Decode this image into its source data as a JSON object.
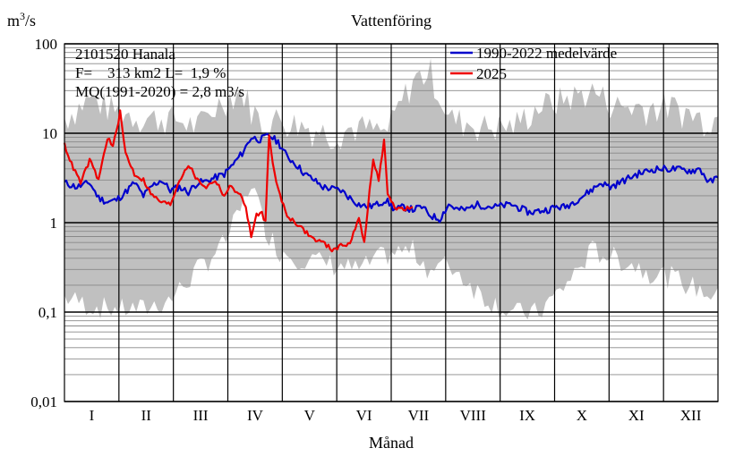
{
  "chart_data": {
    "type": "line",
    "title": "Vattenföring",
    "ylabel_base": "m",
    "ylabel_sup": "3",
    "ylabel_suffix": "/s",
    "xlabel": "Månad",
    "yscale": "log",
    "ylim": [
      0.01,
      100
    ],
    "ytick_labels": [
      "100",
      "10",
      "1",
      "0,1",
      "0,01"
    ],
    "ytick_values": [
      100,
      10,
      1,
      0.1,
      0.01
    ],
    "months": [
      "I",
      "II",
      "III",
      "IV",
      "V",
      "VI",
      "VII",
      "VIII",
      "IX",
      "X",
      "XI",
      "XII"
    ],
    "info_lines": [
      "2101520 Hanala",
      "F=    313 km2 L=  1,9 %",
      "MQ(1991-2020) = 2,8 m3/s"
    ],
    "legend": [
      {
        "name": "1990-2022 medelvärde",
        "color": "#0000cc"
      },
      {
        "name": "2025",
        "color": "#ee0000"
      }
    ],
    "band": {
      "name": "min-max range",
      "color": "#c0c0c0",
      "x_day": [
        1,
        15,
        30,
        45,
        60,
        75,
        90,
        100,
        105,
        112,
        120,
        135,
        150,
        165,
        180,
        195,
        205,
        215,
        235,
        250,
        265,
        280,
        295,
        310,
        325,
        340,
        355,
        365
      ],
      "upper": [
        15,
        25,
        18,
        15,
        15,
        12,
        25,
        30,
        20,
        12,
        15,
        12,
        10,
        12,
        10,
        40,
        50,
        15,
        12,
        12,
        20,
        25,
        30,
        20,
        20,
        20,
        15,
        15
      ],
      "lower": [
        0.15,
        0.12,
        0.11,
        0.11,
        0.14,
        0.3,
        0.6,
        1.5,
        3,
        1.0,
        0.5,
        0.4,
        0.35,
        0.3,
        0.45,
        0.5,
        0.3,
        0.35,
        0.15,
        0.1,
        0.1,
        0.2,
        0.5,
        0.4,
        0.3,
        0.25,
        0.18,
        0.15
      ]
    },
    "series": [
      {
        "name": "1990-2022 medelvärde",
        "color": "#0000cc",
        "x_day": [
          1,
          8,
          15,
          20,
          25,
          30,
          35,
          40,
          45,
          50,
          55,
          60,
          65,
          70,
          75,
          80,
          85,
          90,
          95,
          100,
          105,
          110,
          115,
          120,
          125,
          130,
          135,
          140,
          145,
          150,
          155,
          160,
          165,
          170,
          175,
          180,
          185,
          190,
          195,
          200,
          205,
          210,
          215,
          220,
          225,
          230,
          240,
          250,
          260,
          270,
          275,
          280,
          290,
          300,
          305,
          310,
          320,
          330,
          340,
          350,
          355,
          360,
          365
        ],
        "y": [
          2.8,
          2.5,
          2.8,
          1.9,
          1.7,
          1.8,
          2.2,
          2.8,
          2.0,
          2.6,
          3.0,
          2.3,
          2.5,
          2.2,
          2.8,
          2.9,
          3.2,
          3.5,
          4.5,
          6.0,
          9.0,
          8.5,
          9.5,
          8.0,
          5.5,
          4.5,
          3.5,
          3.0,
          2.5,
          2.4,
          2.3,
          1.9,
          1.6,
          1.5,
          1.6,
          1.8,
          1.4,
          1.5,
          1.4,
          1.5,
          1.2,
          1.1,
          1.6,
          1.4,
          1.4,
          1.6,
          1.5,
          1.6,
          1.3,
          1.4,
          1.5,
          1.5,
          2.0,
          2.8,
          2.5,
          2.8,
          3.5,
          4.0,
          4.0,
          3.8,
          4.0,
          2.8,
          3.2
        ]
      },
      {
        "name": "2025",
        "color": "#ee0000",
        "x_day": [
          1,
          5,
          10,
          15,
          20,
          25,
          28,
          32,
          35,
          40,
          45,
          50,
          55,
          60,
          65,
          70,
          75,
          80,
          85,
          90,
          93,
          98,
          102,
          105,
          108,
          111,
          113,
          115,
          118,
          121,
          125,
          130,
          135,
          140,
          145,
          150,
          155,
          160,
          165,
          168,
          170,
          173,
          176,
          179,
          181,
          183,
          185,
          190,
          195
        ],
        "y": [
          7.5,
          4.5,
          2.8,
          5.0,
          3.0,
          9.0,
          7.0,
          17.0,
          6.0,
          3.5,
          3.0,
          2.0,
          1.7,
          1.6,
          3.0,
          4.5,
          3.0,
          2.5,
          3.0,
          2.0,
          2.5,
          2.2,
          1.5,
          0.7,
          1.2,
          1.3,
          1.0,
          10.0,
          3.5,
          2.0,
          1.2,
          1.0,
          0.8,
          0.65,
          0.6,
          0.5,
          0.55,
          0.6,
          1.1,
          0.6,
          1.5,
          5.0,
          3.0,
          8.5,
          2.0,
          1.8,
          1.5,
          1.4,
          1.5
        ]
      }
    ]
  }
}
